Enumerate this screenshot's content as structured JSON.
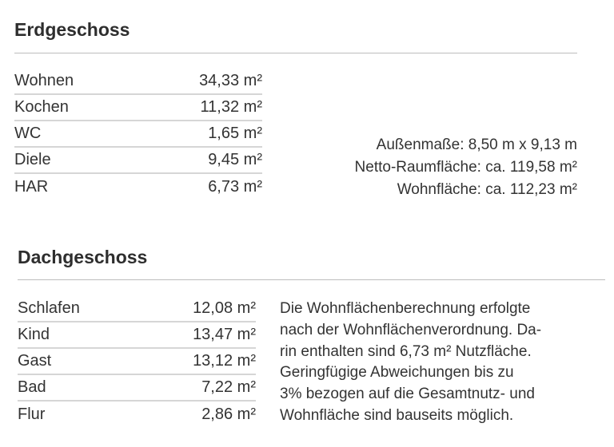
{
  "erdgeschoss": {
    "title": "Erdgeschoss",
    "rooms": [
      {
        "name": "Wohnen",
        "area": "34,33 m²"
      },
      {
        "name": "Kochen",
        "area": "11,32 m²"
      },
      {
        "name": "WC",
        "area": "1,65 m²"
      },
      {
        "name": "Diele",
        "area": "9,45 m²"
      },
      {
        "name": "HAR",
        "area": "6,73 m²"
      }
    ],
    "info": [
      "Außenmaße: 8,50 m x 9,13 m",
      "Netto-Raumfläche: ca. 119,58 m²",
      "Wohnfläche: ca. 112,23 m²"
    ]
  },
  "dachgeschoss": {
    "title": "Dachgeschoss",
    "rooms": [
      {
        "name": "Schlafen",
        "area": "12,08 m²"
      },
      {
        "name": "Kind",
        "area": "13,47 m²"
      },
      {
        "name": "Gast",
        "area": "13,12 m²"
      },
      {
        "name": "Bad",
        "area": "7,22 m²"
      },
      {
        "name": "Flur",
        "area": "2,86 m²"
      }
    ],
    "note_lines": [
      "Die Wohnflächenberechnung erfolgte",
      "nach der Wohnflächenverordnung. Da-",
      "rin enthalten sind 6,73 m² Nutzfläche.",
      "Geringfügige Abweichungen bis zu",
      "3% bezogen auf die Gesamtnutz- und",
      "Wohnfläche sind bauseits möglich."
    ]
  }
}
